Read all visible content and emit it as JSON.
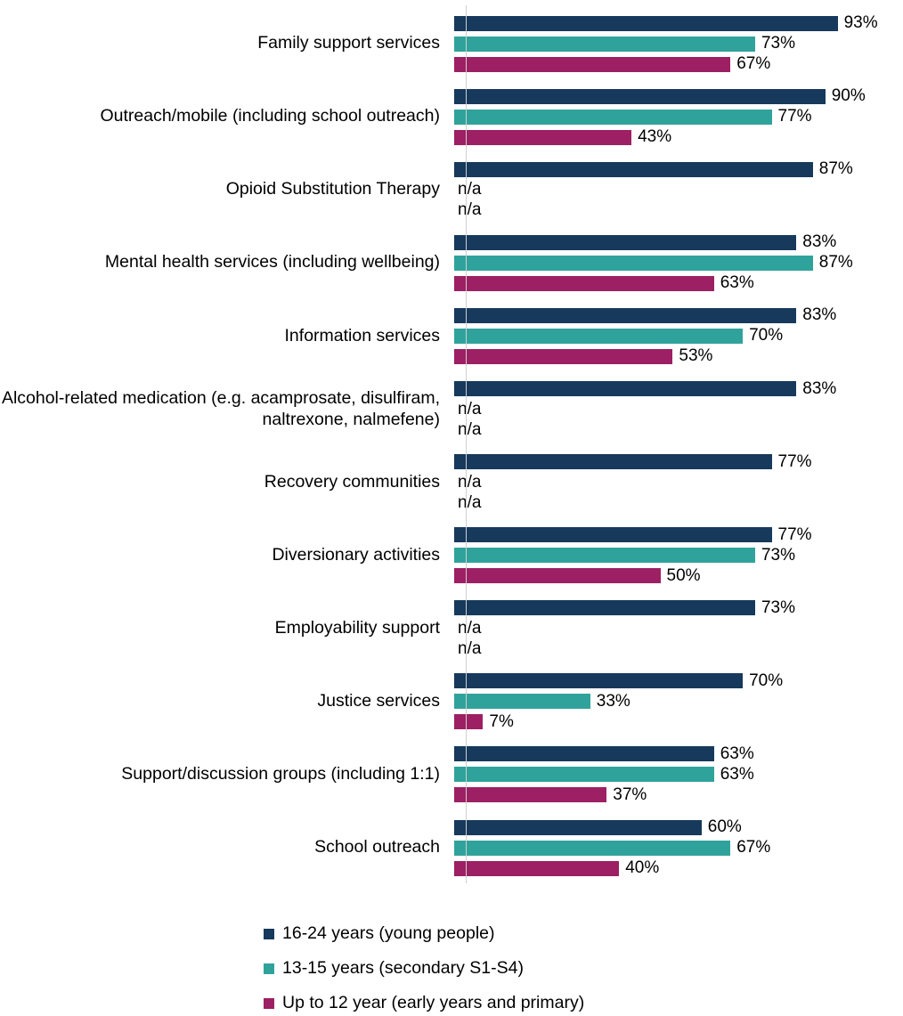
{
  "chart_data": {
    "type": "bar",
    "orientation": "horizontal",
    "title": "",
    "xlabel": "",
    "ylabel": "",
    "xlim": [
      0,
      100
    ],
    "value_suffix": "%",
    "na_label": "n/a",
    "grid": false,
    "legend_position": "bottom",
    "categories": [
      "Family support services",
      "Outreach/mobile (including school outreach)",
      "Opioid Substitution Therapy",
      "Mental health services (including wellbeing)",
      "Information services",
      "Alcohol-related medication  (e.g. acamprosate, disulfiram, naltrexone, nalmefene)",
      "Recovery communities",
      "Diversionary activities",
      "Employability support",
      "Justice services",
      "Support/discussion groups (including 1:1)",
      "School outreach"
    ],
    "series": [
      {
        "name": "16-24 years (young people)",
        "color": "#16395C",
        "values": [
          93,
          90,
          87,
          83,
          83,
          83,
          77,
          77,
          73,
          70,
          63,
          60
        ]
      },
      {
        "name": "13-15 years (secondary S1-S4)",
        "color": "#2FA39B",
        "values": [
          73,
          77,
          null,
          87,
          70,
          null,
          null,
          73,
          null,
          33,
          63,
          67
        ]
      },
      {
        "name": "Up to 12 year (early years and primary)",
        "color": "#9C2063",
        "values": [
          67,
          43,
          null,
          63,
          53,
          null,
          null,
          50,
          null,
          7,
          37,
          40
        ]
      }
    ]
  }
}
